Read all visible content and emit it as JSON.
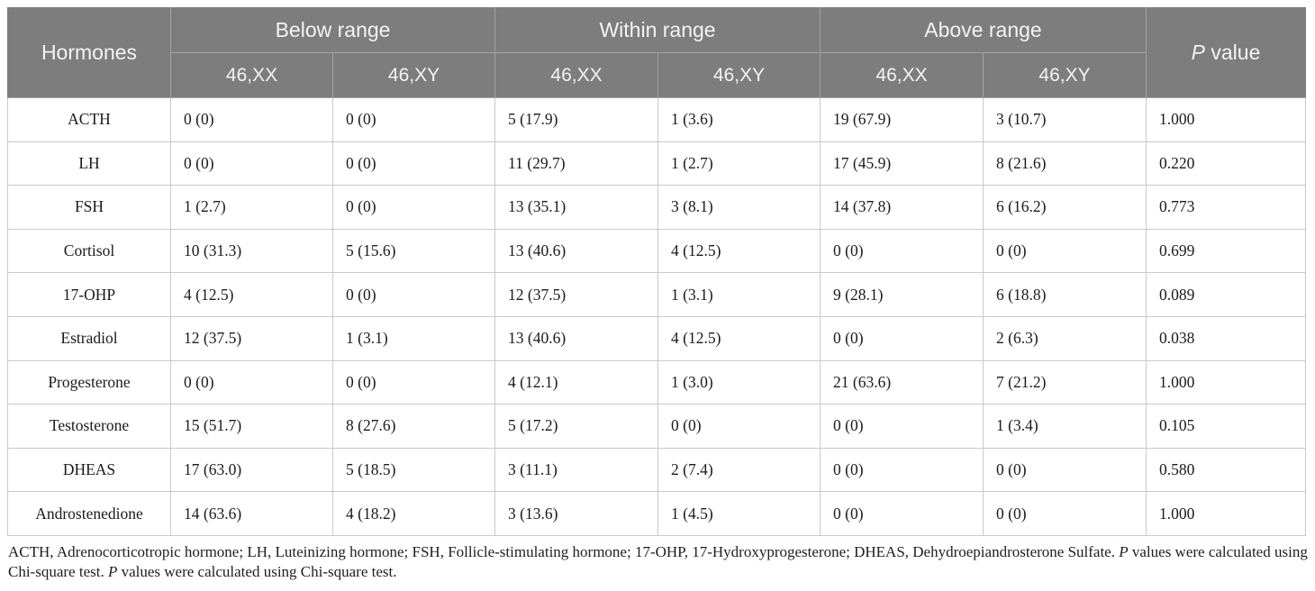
{
  "table": {
    "header": {
      "hormones": "Hormones",
      "groups": [
        "Below range",
        "Within range",
        "Above range"
      ],
      "subcolumns": [
        "46,XX",
        "46,XY"
      ],
      "p_italic": "P",
      "p_rest": " value"
    },
    "rows": [
      {
        "hormone": "ACTH",
        "values": [
          "0 (0)",
          "0 (0)",
          "5 (17.9)",
          "1 (3.6)",
          "19 (67.9)",
          "3 (10.7)"
        ],
        "p": "1.000"
      },
      {
        "hormone": "LH",
        "values": [
          "0 (0)",
          "0 (0)",
          "11 (29.7)",
          "1 (2.7)",
          "17 (45.9)",
          "8 (21.6)"
        ],
        "p": "0.220"
      },
      {
        "hormone": "FSH",
        "values": [
          "1 (2.7)",
          "0 (0)",
          "13 (35.1)",
          "3 (8.1)",
          "14 (37.8)",
          "6 (16.2)"
        ],
        "p": "0.773"
      },
      {
        "hormone": "Cortisol",
        "values": [
          "10 (31.3)",
          "5 (15.6)",
          "13 (40.6)",
          "4 (12.5)",
          "0 (0)",
          "0 (0)"
        ],
        "p": "0.699"
      },
      {
        "hormone": "17-OHP",
        "values": [
          "4 (12.5)",
          "0 (0)",
          "12 (37.5)",
          "1 (3.1)",
          "9 (28.1)",
          "6 (18.8)"
        ],
        "p": "0.089"
      },
      {
        "hormone": "Estradiol",
        "values": [
          "12 (37.5)",
          "1 (3.1)",
          "13 (40.6)",
          "4 (12.5)",
          "0 (0)",
          "2 (6.3)"
        ],
        "p": "0.038"
      },
      {
        "hormone": "Progesterone",
        "values": [
          "0 (0)",
          "0 (0)",
          "4 (12.1)",
          "1 (3.0)",
          "21 (63.6)",
          "7 (21.2)"
        ],
        "p": "1.000"
      },
      {
        "hormone": "Testosterone",
        "values": [
          "15 (51.7)",
          "8 (27.6)",
          "5 (17.2)",
          "0 (0)",
          "0 (0)",
          "1 (3.4)"
        ],
        "p": "0.105"
      },
      {
        "hormone": "DHEAS",
        "values": [
          "17 (63.0)",
          "5 (18.5)",
          "3 (11.1)",
          "2 (7.4)",
          "0 (0)",
          "0 (0)"
        ],
        "p": "0.580"
      },
      {
        "hormone": "Androstenedione",
        "values": [
          "14 (63.6)",
          "4 (18.2)",
          "3 (13.6)",
          "1 (4.5)",
          "0 (0)",
          "0 (0)"
        ],
        "p": "1.000"
      }
    ]
  },
  "footnote": {
    "part1": "ACTH, Adrenocorticotropic hormone; LH, Luteinizing hormone; FSH, Follicle-stimulating hormone; 17-OHP, 17-Hydroxyprogesterone; DHEAS, Dehydroepiandrosterone Sulfate. ",
    "p1": "P",
    "part2": " values were calculated using Chi-square test. ",
    "p2": "P",
    "part3": " values were calculated using Chi-square test."
  }
}
